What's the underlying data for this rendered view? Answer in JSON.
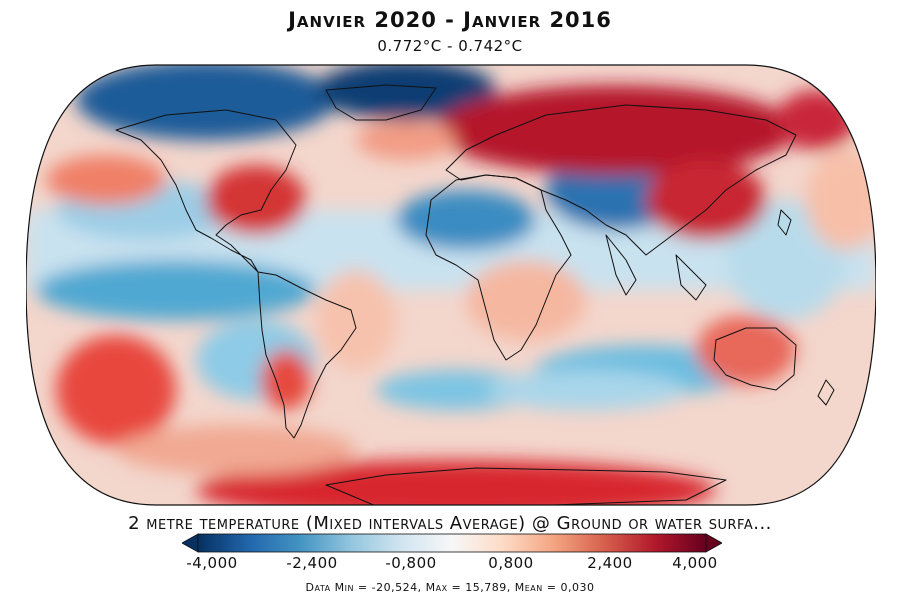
{
  "header": {
    "title": "Janvier 2020 - Janvier 2016",
    "subtitle": "0.772°C - 0.742°C"
  },
  "variable_label": "2 metre temperature (Mixed intervals Average) @ Ground or water surfa...",
  "colorbar": {
    "ticks": [
      "-4,000",
      "-2,400",
      "-0,800",
      "0,800",
      "2,400",
      "4,000"
    ],
    "colors": [
      "#053061",
      "#2166ac",
      "#4393c3",
      "#92c5de",
      "#d1e5f0",
      "#f7f7f7",
      "#fddbc7",
      "#f4a582",
      "#d6604d",
      "#b2182b",
      "#67001f"
    ]
  },
  "stats": "Data Min = -20,524, Max = 15,789, Mean = 0,030"
}
